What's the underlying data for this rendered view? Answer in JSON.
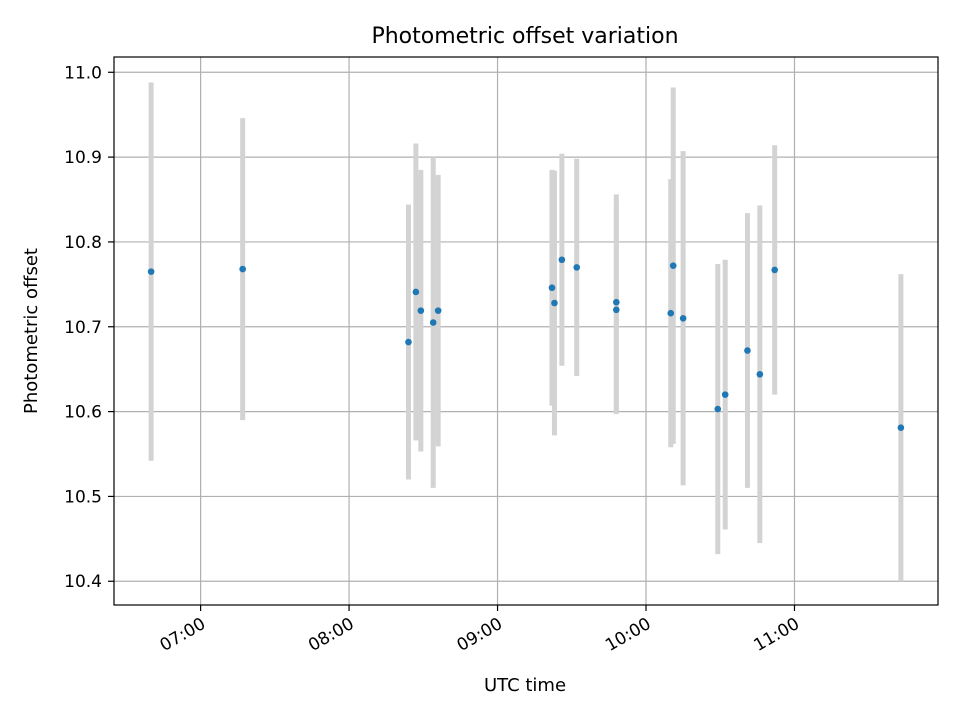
{
  "chart_data": {
    "type": "scatter",
    "title": "Photometric offset variation",
    "xlabel": "UTC time",
    "ylabel": "Photometric offset",
    "xlim": [
      "06:25",
      "11:58"
    ],
    "ylim": [
      10.372,
      11.018
    ],
    "x_ticks": [
      "07:00",
      "08:00",
      "09:00",
      "10:00",
      "11:00"
    ],
    "y_ticks": [
      10.4,
      10.5,
      10.6,
      10.7,
      10.8,
      10.9,
      11.0
    ],
    "y_tick_labels": [
      "10.4",
      "10.5",
      "10.6",
      "10.7",
      "10.8",
      "10.9",
      "11.0"
    ],
    "grid": true,
    "colors": {
      "point": "#1f77b4",
      "errorbar": "#d3d3d3",
      "grid": "#b0b0b0"
    },
    "points": [
      {
        "x": "06:40",
        "y": 10.765,
        "err": 0.223
      },
      {
        "x": "07:17",
        "y": 10.768,
        "err": 0.178
      },
      {
        "x": "08:24",
        "y": 10.682,
        "err": 0.162
      },
      {
        "x": "08:27",
        "y": 10.741,
        "err": 0.175
      },
      {
        "x": "08:29",
        "y": 10.719,
        "err": 0.166
      },
      {
        "x": "08:34",
        "y": 10.705,
        "err": 0.195
      },
      {
        "x": "08:36",
        "y": 10.719,
        "err": 0.16
      },
      {
        "x": "09:22",
        "y": 10.746,
        "err": 0.139
      },
      {
        "x": "09:23",
        "y": 10.728,
        "err": 0.156
      },
      {
        "x": "09:26",
        "y": 10.779,
        "err": 0.125
      },
      {
        "x": "09:32",
        "y": 10.77,
        "err": 0.128
      },
      {
        "x": "09:48",
        "y": 10.729,
        "err": 0.127
      },
      {
        "x": "09:48",
        "y": 10.72,
        "err": 0.123
      },
      {
        "x": "10:10",
        "y": 10.716,
        "err": 0.158
      },
      {
        "x": "10:11",
        "y": 10.772,
        "err": 0.21
      },
      {
        "x": "10:15",
        "y": 10.71,
        "err": 0.197
      },
      {
        "x": "10:29",
        "y": 10.603,
        "err": 0.171
      },
      {
        "x": "10:32",
        "y": 10.62,
        "err": 0.159
      },
      {
        "x": "10:41",
        "y": 10.672,
        "err": 0.162
      },
      {
        "x": "10:46",
        "y": 10.644,
        "err": 0.199
      },
      {
        "x": "10:52",
        "y": 10.767,
        "err": 0.147
      },
      {
        "x": "11:43",
        "y": 10.581,
        "err": 0.181
      }
    ]
  }
}
